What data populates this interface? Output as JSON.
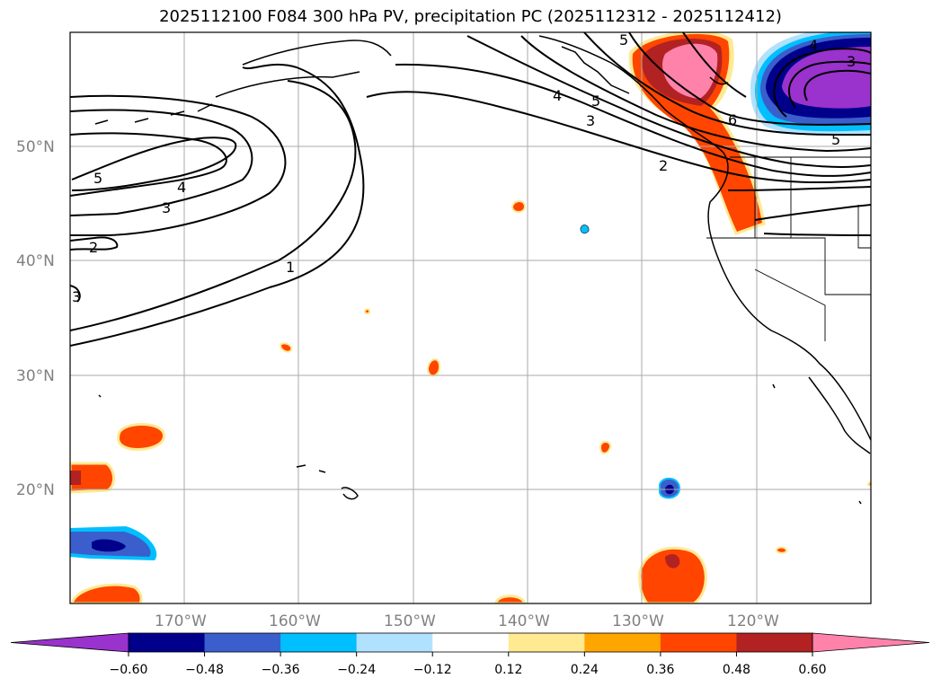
{
  "title": "2025112100 F084 300 hPa PV, precipitation PC (2025112312 - 2025112412)",
  "lat_labels": [
    "50°N",
    "40°N",
    "30°N",
    "20°N"
  ],
  "lon_labels": [
    "170°W",
    "160°W",
    "150°W",
    "140°W",
    "130°W",
    "120°W"
  ],
  "pv_contour_labels": [
    "5",
    "4",
    "3",
    "2",
    "1",
    "3",
    "5",
    "4",
    "5",
    "3",
    "2",
    "6",
    "4",
    "3",
    "5"
  ],
  "colorbar": {
    "ticks": [
      "−0.60",
      "−0.48",
      "−0.36",
      "−0.24",
      "−0.12",
      "0.12",
      "0.24",
      "0.36",
      "0.48",
      "0.60"
    ],
    "colors": [
      "#9a32cd",
      "#00008b",
      "#3a5fcd",
      "#00bfff",
      "#b0e2ff",
      "#ffffff",
      "#ffe991",
      "#ffa500",
      "#ff4500",
      "#b22222",
      "#ff82ab",
      "#ff82ab"
    ]
  }
}
